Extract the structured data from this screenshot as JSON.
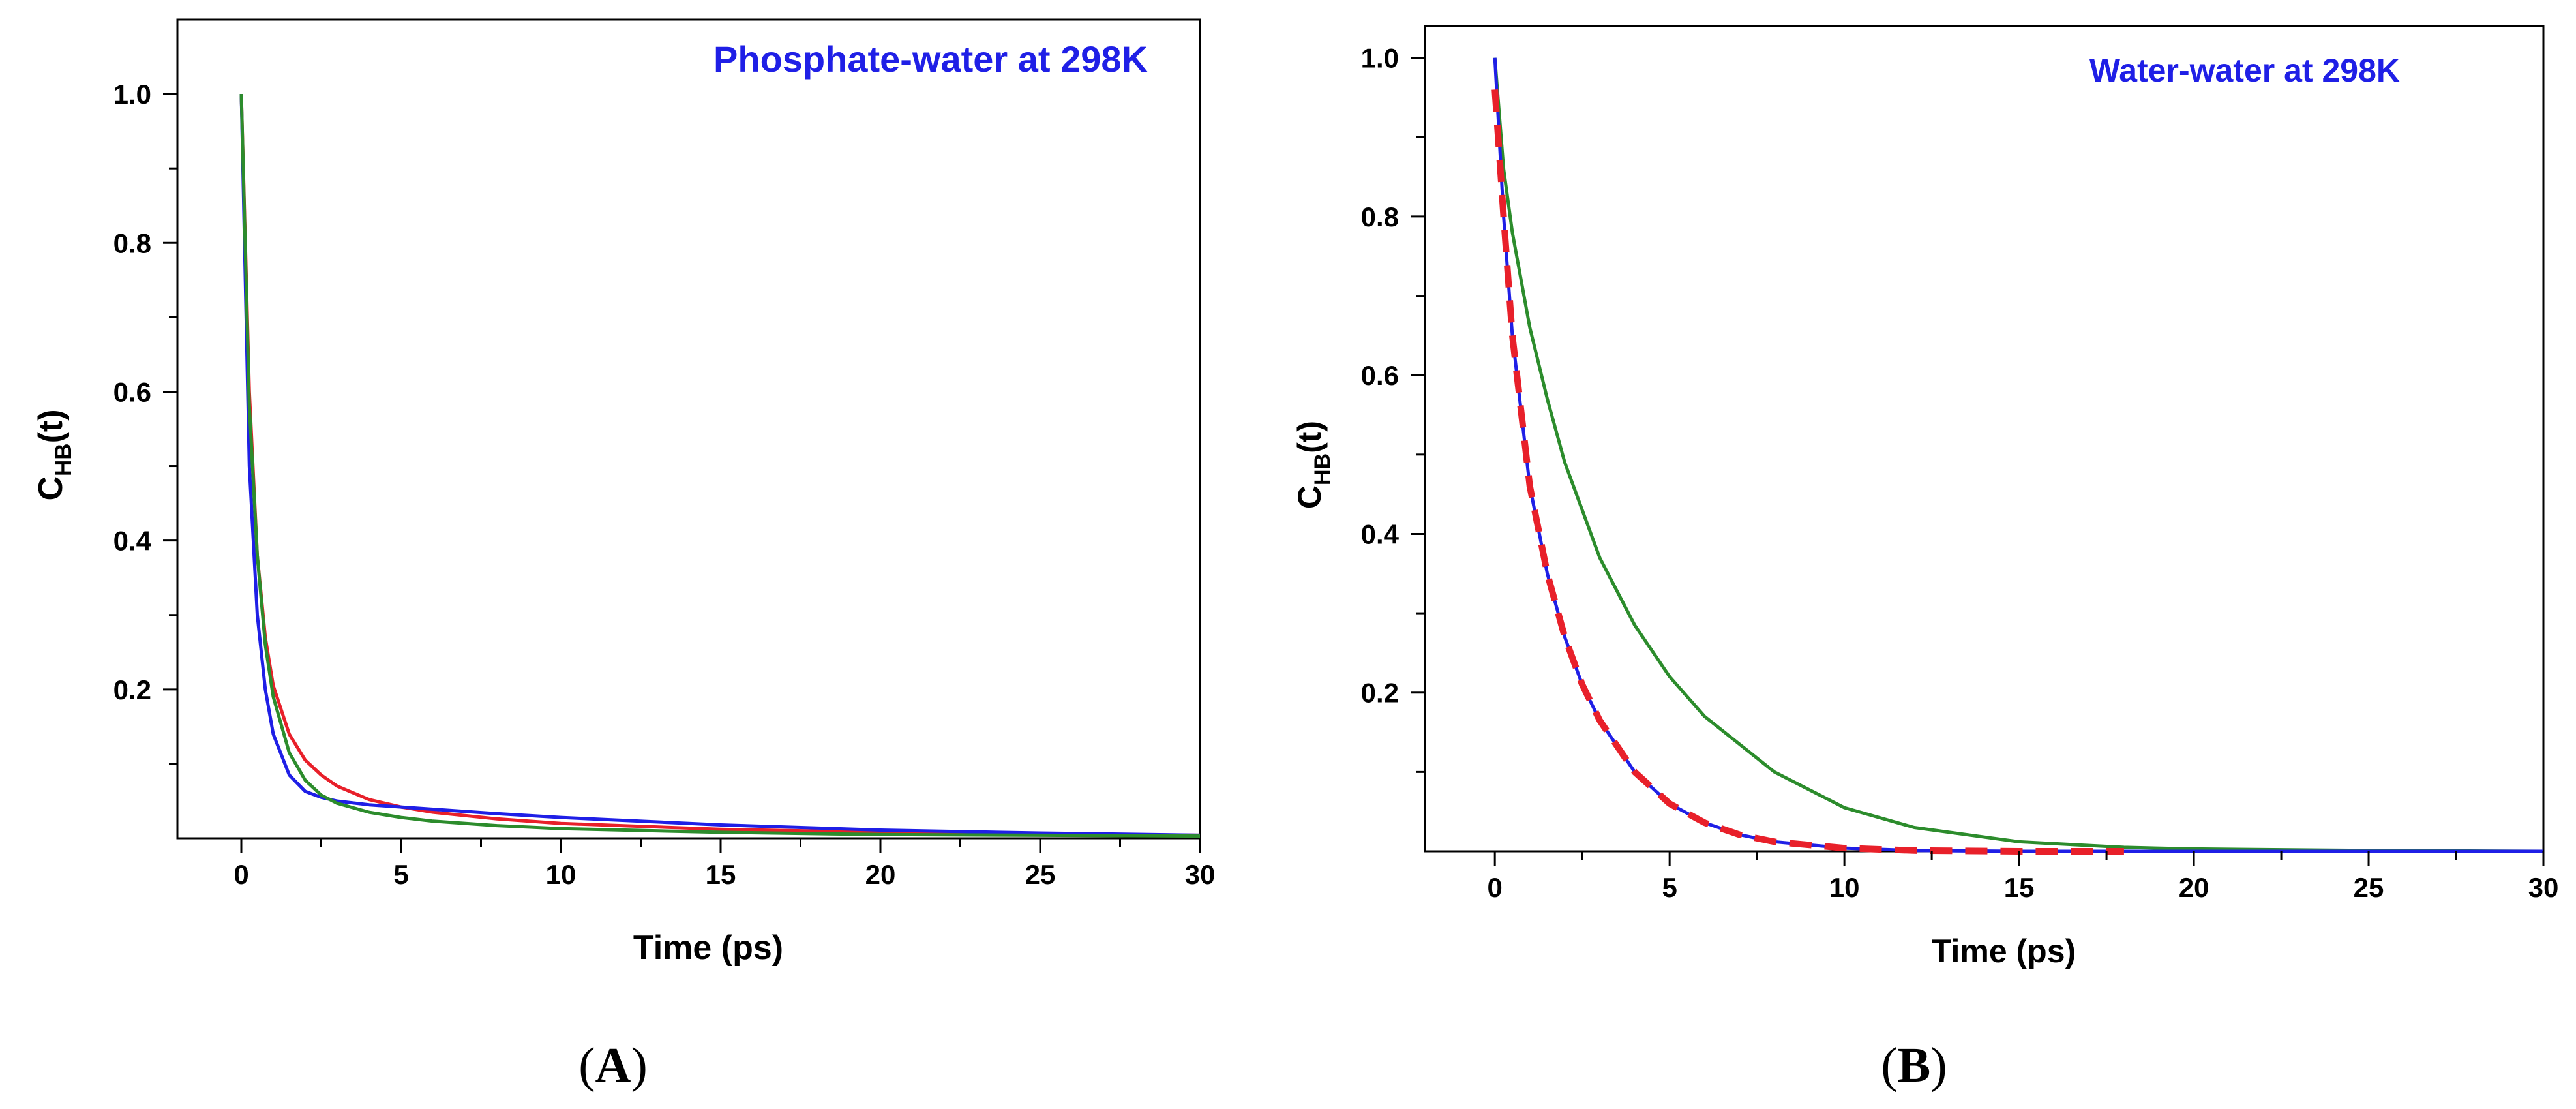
{
  "chart_data": [
    {
      "type": "line",
      "panel_label": "A",
      "title": "Phosphate-water at 298K",
      "xlabel": "Time (ps)",
      "ylabel_main": "C",
      "ylabel_sub": "HB",
      "ylabel_tail": "(t)",
      "xlim": [
        -2,
        30
      ],
      "ylim": [
        0,
        1.1
      ],
      "xticks": [
        0,
        5,
        10,
        15,
        20,
        25,
        30
      ],
      "yticks": [
        0.2,
        0.4,
        0.6,
        0.8,
        1.0
      ],
      "ytick_labels": [
        "0.2",
        "0.4",
        "0.6",
        "0.8",
        "1.0"
      ],
      "series": [
        {
          "name": "red",
          "color": "#e8202a",
          "dashed": false,
          "x": [
            0,
            0.25,
            0.5,
            0.75,
            1,
            1.5,
            2,
            2.5,
            3,
            4,
            5,
            6,
            8,
            10,
            15,
            20,
            25,
            30
          ],
          "y": [
            1.0,
            0.6,
            0.38,
            0.27,
            0.205,
            0.14,
            0.105,
            0.085,
            0.07,
            0.052,
            0.042,
            0.035,
            0.026,
            0.02,
            0.012,
            0.008,
            0.006,
            0.004
          ]
        },
        {
          "name": "blue",
          "color": "#1f1fe6",
          "dashed": false,
          "x": [
            0,
            0.25,
            0.5,
            0.75,
            1,
            1.5,
            2,
            2.5,
            3,
            4,
            5,
            6,
            8,
            10,
            15,
            20,
            25,
            30
          ],
          "y": [
            1.0,
            0.5,
            0.3,
            0.2,
            0.14,
            0.085,
            0.063,
            0.055,
            0.05,
            0.045,
            0.042,
            0.039,
            0.033,
            0.028,
            0.018,
            0.011,
            0.007,
            0.004
          ]
        },
        {
          "name": "green",
          "color": "#2c8c2c",
          "dashed": false,
          "x": [
            0,
            0.25,
            0.5,
            0.75,
            1,
            1.5,
            2,
            2.5,
            3,
            4,
            5,
            6,
            8,
            10,
            15,
            20,
            25,
            30
          ],
          "y": [
            1.0,
            0.58,
            0.38,
            0.26,
            0.19,
            0.115,
            0.078,
            0.058,
            0.047,
            0.035,
            0.028,
            0.023,
            0.017,
            0.013,
            0.008,
            0.005,
            0.004,
            0.003
          ]
        }
      ]
    },
    {
      "type": "line",
      "panel_label": "B",
      "title": "Water-water at 298K",
      "xlabel": "Time (ps)",
      "ylabel_main": "C",
      "ylabel_sub": "HB",
      "ylabel_tail": "(t)",
      "xlim": [
        -2,
        30
      ],
      "ylim": [
        0,
        1.04
      ],
      "xticks": [
        0,
        5,
        10,
        15,
        20,
        25,
        30
      ],
      "yticks": [
        0.2,
        0.4,
        0.6,
        0.8,
        1.0
      ],
      "ytick_labels": [
        "0.2",
        "0.4",
        "0.6",
        "0.8",
        "1.0"
      ],
      "series": [
        {
          "name": "green",
          "color": "#2c8c2c",
          "dashed": false,
          "x": [
            0,
            0.25,
            0.5,
            1,
            1.5,
            2,
            3,
            4,
            5,
            6,
            8,
            10,
            12,
            15,
            18,
            20,
            25,
            30
          ],
          "y": [
            1.0,
            0.86,
            0.78,
            0.66,
            0.57,
            0.49,
            0.37,
            0.285,
            0.22,
            0.17,
            0.1,
            0.055,
            0.03,
            0.012,
            0.005,
            0.003,
            0.001,
            0.0
          ]
        },
        {
          "name": "blue",
          "color": "#1f1fe6",
          "dashed": false,
          "x": [
            0,
            0.25,
            0.5,
            1,
            1.5,
            2,
            2.5,
            3,
            4,
            5,
            6,
            7,
            8,
            10,
            12,
            15,
            20,
            30
          ],
          "y": [
            1.0,
            0.8,
            0.65,
            0.46,
            0.35,
            0.27,
            0.21,
            0.165,
            0.1,
            0.06,
            0.036,
            0.021,
            0.012,
            0.004,
            0.001,
            0.0,
            0.0,
            0.0
          ]
        },
        {
          "name": "red",
          "color": "#e8202a",
          "dashed": true,
          "x": [
            0,
            0.25,
            0.5,
            1,
            1.5,
            2,
            2.5,
            3,
            4,
            5,
            6,
            7,
            8,
            10,
            12,
            15,
            18
          ],
          "y": [
            0.96,
            0.8,
            0.65,
            0.46,
            0.35,
            0.27,
            0.21,
            0.165,
            0.1,
            0.06,
            0.036,
            0.021,
            0.012,
            0.004,
            0.001,
            0.0,
            0.0
          ]
        }
      ]
    }
  ]
}
